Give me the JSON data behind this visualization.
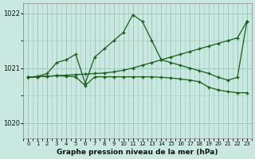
{
  "title": "Graphe pression niveau de la mer (hPa)",
  "bg_color": "#c8e8e0",
  "grid_color": "#a0c8c0",
  "line_color": "#1a5c1a",
  "xlim": [
    -0.5,
    23.5
  ],
  "ylim": [
    1019.72,
    1022.18
  ],
  "yticks": [
    1020,
    1021,
    1022
  ],
  "xticks": [
    0,
    1,
    2,
    3,
    4,
    5,
    6,
    7,
    8,
    9,
    10,
    11,
    12,
    13,
    14,
    15,
    16,
    17,
    18,
    19,
    20,
    21,
    22,
    23
  ],
  "line1_x": [
    0,
    1,
    2,
    3,
    4,
    5,
    6,
    7,
    8,
    9,
    10,
    11,
    12,
    13,
    14,
    15,
    16,
    17,
    18,
    19,
    20,
    21,
    22,
    23
  ],
  "line1_y": [
    1020.83,
    1020.84,
    1020.85,
    1020.86,
    1020.87,
    1020.88,
    1020.89,
    1020.9,
    1020.91,
    1020.93,
    1020.96,
    1021.0,
    1021.05,
    1021.1,
    1021.15,
    1021.2,
    1021.25,
    1021.3,
    1021.35,
    1021.4,
    1021.45,
    1021.5,
    1021.55,
    1021.85
  ],
  "line2_x": [
    0,
    1,
    2,
    3,
    4,
    5,
    6,
    7,
    8,
    9,
    10,
    11,
    12,
    13,
    14,
    15,
    16,
    17,
    18,
    19,
    20,
    21,
    22,
    23
  ],
  "line2_y": [
    1020.83,
    1020.85,
    1020.9,
    1021.1,
    1021.15,
    1021.25,
    1020.72,
    1021.2,
    1021.35,
    1021.5,
    1021.65,
    1021.97,
    1021.85,
    1021.5,
    1021.15,
    1021.1,
    1021.05,
    1021.0,
    1020.95,
    1020.9,
    1020.83,
    1020.78,
    1020.83,
    1021.85
  ],
  "line3_x": [
    0,
    1,
    2,
    3,
    4,
    5,
    6,
    7,
    8,
    9,
    10,
    11,
    12,
    13,
    14,
    15,
    16,
    17,
    18,
    19,
    20,
    21,
    22,
    23
  ],
  "line3_y": [
    1020.83,
    1020.84,
    1020.85,
    1020.86,
    1020.85,
    1020.84,
    1020.68,
    1020.84,
    1020.84,
    1020.84,
    1020.84,
    1020.84,
    1020.84,
    1020.84,
    1020.83,
    1020.82,
    1020.8,
    1020.78,
    1020.75,
    1020.65,
    1020.6,
    1020.57,
    1020.55,
    1020.55
  ]
}
